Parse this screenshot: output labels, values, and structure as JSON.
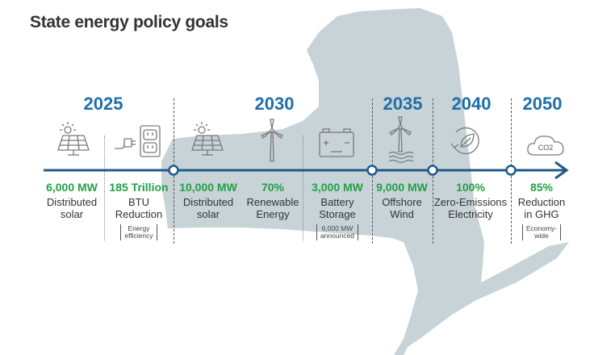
{
  "title": "State energy policy goals",
  "colors": {
    "year": "#1f6fa8",
    "value": "#22a046",
    "timeline": "#1f5a8a",
    "map": "#c7d3d6",
    "icon": "#7a7a7a"
  },
  "years": [
    "2025",
    "2030",
    "2035",
    "2040",
    "2050"
  ],
  "goals": [
    {
      "value": "6,000 MW",
      "desc_lines": [
        "Distributed",
        "solar"
      ],
      "note_lines": [],
      "icon": "solar-panel-icon"
    },
    {
      "value": "185 Trillion",
      "desc_lines": [
        "BTU",
        "Reduction"
      ],
      "note_lines": [
        "Energy",
        "efficiency"
      ],
      "icon": "plug-outlet-icon"
    },
    {
      "value": "10,000 MW",
      "desc_lines": [
        "Distributed",
        "solar"
      ],
      "note_lines": [],
      "icon": "solar-panel-icon"
    },
    {
      "value": "70%",
      "desc_lines": [
        "Renewable",
        "Energy"
      ],
      "note_lines": [],
      "icon": "wind-turbine-icon"
    },
    {
      "value": "3,000 MW",
      "desc_lines": [
        "Battery",
        "Storage"
      ],
      "note_lines": [
        "6,000 MW",
        "announced"
      ],
      "icon": "battery-icon"
    },
    {
      "value": "9,000 MW",
      "desc_lines": [
        "Offshore",
        "Wind"
      ],
      "note_lines": [],
      "icon": "offshore-wind-icon"
    },
    {
      "value": "100%",
      "desc_lines": [
        "Zero-Emissions",
        "Electricity"
      ],
      "note_lines": [],
      "icon": "leaf-cycle-icon"
    },
    {
      "value": "85%",
      "desc_lines": [
        "Reduction",
        "in GHG"
      ],
      "note_lines": [
        "Economy-",
        "wide"
      ],
      "icon": "co2-cloud-icon"
    }
  ],
  "co2_label": "CO2"
}
